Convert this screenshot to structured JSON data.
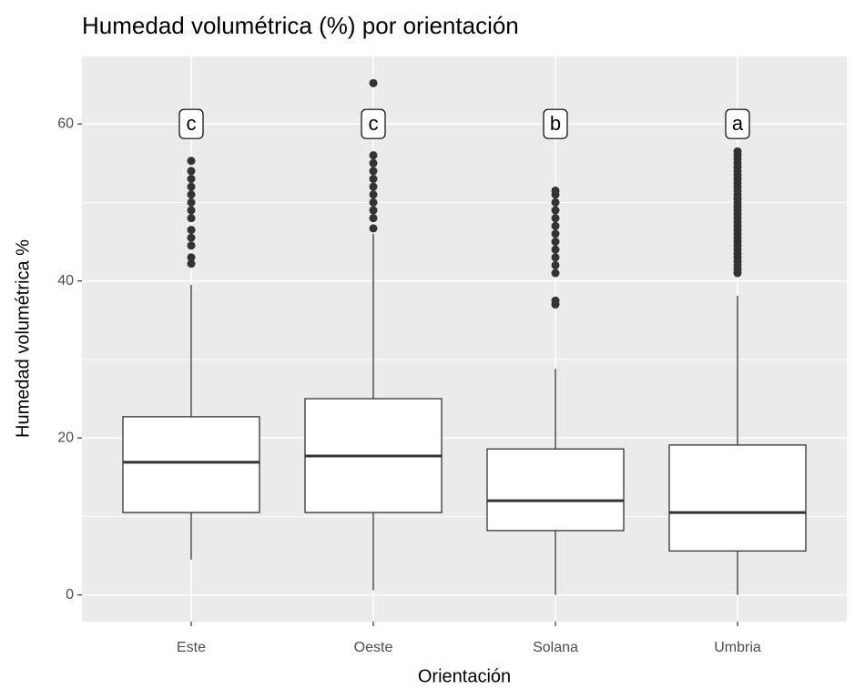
{
  "chart_data": {
    "type": "box",
    "title": "Humedad volumétrica (%) por orientación",
    "x_label": "Orientación",
    "y_label": "Humedad volumétrica %",
    "categories": [
      "Este",
      "Oeste",
      "Solana",
      "Umbria"
    ],
    "boxes": [
      {
        "low": 4.5,
        "q1": 10.5,
        "median": 16.9,
        "q3": 22.7,
        "high": 39.5,
        "outliers": [
          42.2,
          43,
          44.5,
          45.5,
          46.5,
          48,
          49,
          50,
          51,
          52,
          53,
          54,
          55.3
        ]
      },
      {
        "low": 0.6,
        "q1": 10.5,
        "median": 17.7,
        "q3": 25.0,
        "high": 46.0,
        "outliers": [
          46.7,
          48,
          49,
          50,
          51,
          52,
          53,
          54,
          55,
          56,
          65.2
        ]
      },
      {
        "low": 0,
        "q1": 8.2,
        "median": 12.0,
        "q3": 18.6,
        "high": 28.8,
        "outliers": [
          37,
          37.5,
          41,
          42,
          43,
          44,
          45,
          46,
          47,
          48,
          49,
          50,
          51,
          51.5
        ]
      },
      {
        "low": 0,
        "q1": 5.6,
        "median": 10.5,
        "q3": 19.1,
        "high": 38.1,
        "outliers": [
          41,
          41.5,
          42,
          42.5,
          43,
          43.5,
          44,
          44.5,
          45,
          45.5,
          46,
          46.5,
          47,
          47.5,
          48,
          48.5,
          49,
          49.5,
          50,
          50.5,
          51,
          51.5,
          52,
          52.5,
          53,
          53.5,
          54,
          54.5,
          55,
          55.5,
          56,
          56.5
        ]
      }
    ],
    "labels": [
      "c",
      "c",
      "b",
      "a"
    ],
    "label_y": 60,
    "ylim": [
      -3.4,
      68.6
    ],
    "yticks": [
      0,
      20,
      40,
      60
    ],
    "y_minor_grid": [
      10,
      30,
      50
    ],
    "grid": true,
    "color": "#333333"
  }
}
